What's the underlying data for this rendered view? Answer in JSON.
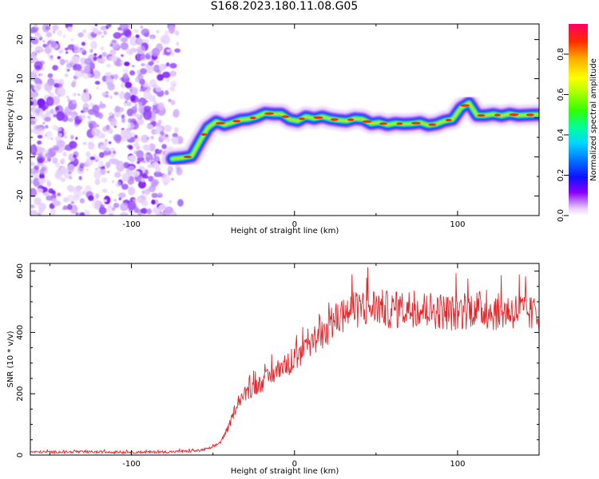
{
  "title": "S168.2023.180.11.08.G05",
  "chart_data": [
    {
      "type": "heatmap",
      "xlabel": "Height of straight line (km)",
      "ylabel": "Frequency (Hz)",
      "xlim": [
        -162,
        150
      ],
      "ylim": [
        -25,
        24
      ],
      "x_ticks": [
        -100,
        0,
        100
      ],
      "y_ticks": [
        -20,
        -10,
        0,
        10,
        20
      ],
      "colorbar": {
        "label": "Normalized spectral amplitude",
        "range": [
          0.0,
          0.95
        ],
        "ticks": [
          0.0,
          0.2,
          0.4,
          0.6,
          0.8
        ],
        "colormap": [
          "#ffffff",
          "#e6c8ff",
          "#8b00ff",
          "#0000ff",
          "#00ccff",
          "#00ff80",
          "#44ff00",
          "#ccff00",
          "#ffff00",
          "#ffaa00",
          "#ff2200",
          "#ff0066"
        ]
      },
      "noise_region": {
        "x_range": [
          -162,
          -68
        ],
        "y_range": [
          -25,
          24
        ]
      },
      "signal_trace": {
        "x": [
          -75,
          -68,
          -63,
          -58,
          -53,
          -48,
          -43,
          -38,
          -33,
          -28,
          -23,
          -18,
          -13,
          -8,
          -3,
          2,
          7,
          12,
          17,
          22,
          27,
          32,
          37,
          42,
          47,
          52,
          57,
          62,
          67,
          72,
          77,
          82,
          87,
          92,
          97,
          102,
          107,
          112,
          117,
          122,
          127,
          132,
          137,
          142,
          147,
          150
        ],
        "y": [
          -10.5,
          -10.2,
          -9.8,
          -6,
          -2.5,
          -1,
          -1.8,
          -1.2,
          -0.5,
          -0.3,
          0.3,
          1.2,
          1.0,
          1.0,
          -0.4,
          -0.8,
          0.3,
          -0.2,
          0.3,
          -0.3,
          -0.6,
          -0.8,
          -0.2,
          -0.4,
          -1.5,
          -1.2,
          -1.8,
          -1.4,
          -1.6,
          -1.5,
          -1.2,
          -1.9,
          -1.6,
          -0.8,
          -0.4,
          2.5,
          3.8,
          0.6,
          0.6,
          0.9,
          0.5,
          1.0,
          0.6,
          0.7,
          0.8,
          0.8
        ]
      }
    },
    {
      "type": "line",
      "xlabel": "Height of straight line (km)",
      "ylabel": "SNR (10 * v/v)",
      "xlim": [
        -162,
        150
      ],
      "ylim": [
        0,
        625
      ],
      "x_ticks": [
        -100,
        0,
        100
      ],
      "y_ticks": [
        0,
        200,
        400,
        600
      ],
      "color": "#e8252b",
      "series": [
        {
          "x": [
            -162,
            -140,
            -120,
            -100,
            -80,
            -65,
            -58,
            -50,
            -45,
            -40,
            -35,
            -30,
            -25,
            -20,
            -15,
            -10,
            -5,
            0,
            5,
            10,
            15,
            20,
            25,
            30,
            35,
            40,
            45,
            50,
            60,
            70,
            80,
            90,
            100,
            110,
            120,
            130,
            140,
            150
          ],
          "values": [
            10,
            10,
            10,
            9,
            10,
            12,
            15,
            25,
            45,
            95,
            175,
            200,
            220,
            235,
            255,
            280,
            295,
            305,
            330,
            360,
            385,
            405,
            440,
            460,
            470,
            475,
            480,
            485,
            470,
            480,
            475,
            470,
            460,
            480,
            465,
            470,
            470,
            450
          ]
        }
      ]
    }
  ]
}
